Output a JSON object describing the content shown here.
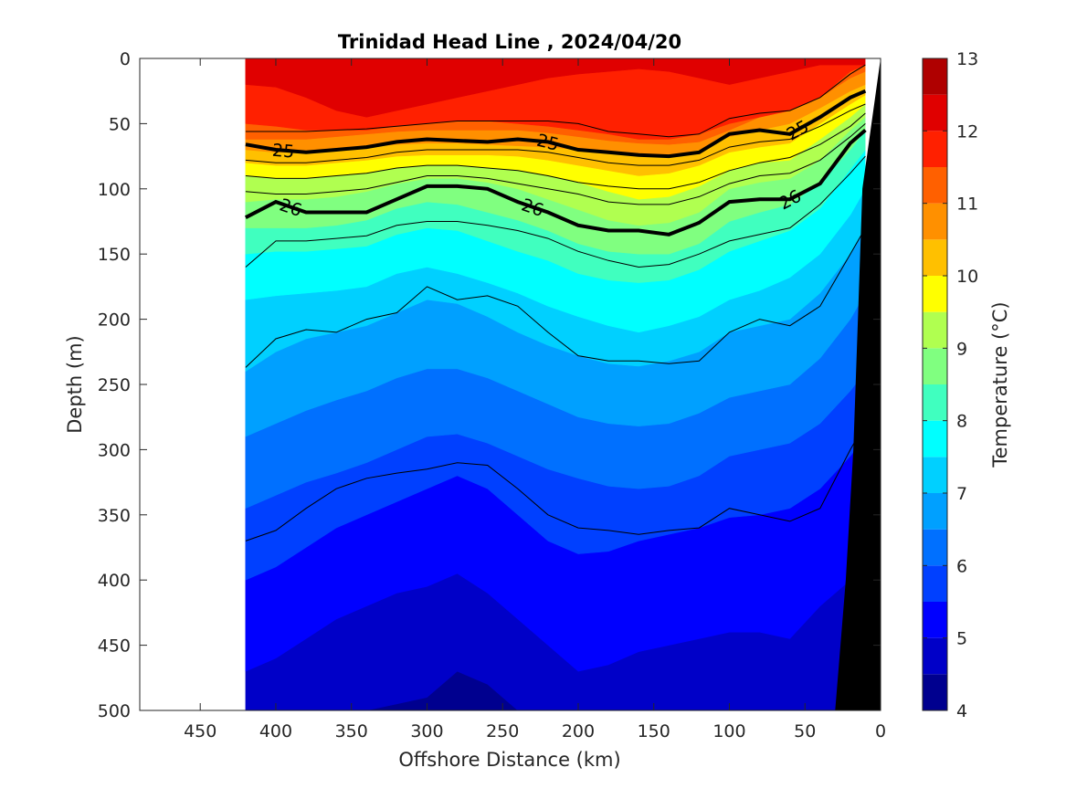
{
  "chart_data": {
    "type": "heatmap",
    "subtype": "filled-contour-section",
    "title": "Trinidad Head Line , 2024/04/20",
    "xlabel": "Offshore Distance (km)",
    "ylabel": "Depth (m)",
    "xlim": [
      490,
      0
    ],
    "ylim": [
      0,
      500
    ],
    "x_reversed": true,
    "y_reversed": true,
    "x_ticks": [
      450,
      400,
      350,
      300,
      250,
      200,
      150,
      100,
      50,
      0
    ],
    "y_ticks": [
      0,
      50,
      100,
      150,
      200,
      250,
      300,
      350,
      400,
      450,
      500
    ],
    "data_x_range": [
      420,
      0
    ],
    "colorbar": {
      "label": "Temperature (°C)",
      "range": [
        4,
        13
      ],
      "ticks": [
        4,
        5,
        6,
        7,
        8,
        9,
        10,
        11,
        12,
        13
      ],
      "levels": [
        4,
        4.5,
        5,
        5.5,
        6,
        6.5,
        7,
        7.5,
        8,
        8.5,
        9,
        9.5,
        10,
        10.5,
        11,
        11.5,
        12,
        12.5,
        13
      ],
      "colors": [
        "#00008f",
        "#0000c8",
        "#0000ff",
        "#0040ff",
        "#0070ff",
        "#00a0ff",
        "#00d0ff",
        "#00ffff",
        "#40ffbf",
        "#80ff80",
        "#b0ff50",
        "#ffff00",
        "#ffc000",
        "#ff9000",
        "#ff6000",
        "#ff2000",
        "#e00000",
        "#af0000"
      ]
    },
    "x": [
      420,
      400,
      380,
      360,
      340,
      320,
      300,
      280,
      260,
      240,
      220,
      200,
      180,
      160,
      140,
      120,
      100,
      80,
      60,
      40,
      20,
      10
    ],
    "isotherms": [
      {
        "temp": 12,
        "depth": [
          20,
          22,
          30,
          40,
          45,
          40,
          35,
          30,
          25,
          20,
          15,
          12,
          10,
          8,
          10,
          15,
          20,
          15,
          10,
          5,
          5,
          5
        ]
      },
      {
        "temp": 11.5,
        "depth": [
          50,
          52,
          55,
          55,
          55,
          52,
          50,
          48,
          48,
          50,
          52,
          55,
          58,
          62,
          62,
          58,
          50,
          45,
          40,
          30,
          10,
          5
        ]
      },
      {
        "temp": 11,
        "depth": [
          62,
          62,
          62,
          60,
          58,
          56,
          55,
          55,
          55,
          55,
          57,
          60,
          63,
          65,
          66,
          64,
          55,
          45,
          40,
          30,
          15,
          10
        ]
      },
      {
        "temp": 10.5,
        "depth": [
          70,
          72,
          72,
          70,
          68,
          66,
          65,
          65,
          66,
          67,
          68,
          70,
          72,
          74,
          75,
          70,
          60,
          55,
          50,
          38,
          25,
          20
        ]
      },
      {
        "temp": 10,
        "depth": [
          80,
          82,
          82,
          80,
          78,
          75,
          74,
          74,
          74,
          75,
          78,
          82,
          86,
          90,
          88,
          82,
          72,
          68,
          65,
          50,
          35,
          28
        ]
      },
      {
        "temp": 9.5,
        "depth": [
          90,
          92,
          92,
          90,
          88,
          84,
          82,
          82,
          84,
          86,
          90,
          95,
          102,
          108,
          106,
          98,
          86,
          80,
          78,
          62,
          45,
          35
        ]
      },
      {
        "temp": 9,
        "depth": [
          110,
          108,
          108,
          106,
          102,
          96,
          92,
          92,
          95,
          100,
          108,
          116,
          124,
          128,
          126,
          118,
          100,
          95,
          92,
          78,
          55,
          45
        ]
      },
      {
        "temp": 8.5,
        "depth": [
          130,
          130,
          130,
          128,
          124,
          115,
          110,
          112,
          118,
          124,
          132,
          142,
          148,
          150,
          150,
          142,
          125,
          118,
          112,
          95,
          70,
          55
        ]
      },
      {
        "temp": 8,
        "depth": [
          150,
          148,
          148,
          146,
          144,
          135,
          130,
          132,
          140,
          148,
          155,
          165,
          170,
          172,
          170,
          162,
          148,
          140,
          132,
          115,
          85,
          70
        ]
      },
      {
        "temp": 7.5,
        "depth": [
          185,
          182,
          180,
          178,
          175,
          165,
          160,
          165,
          172,
          180,
          190,
          198,
          205,
          210,
          205,
          198,
          185,
          178,
          168,
          150,
          120,
          100
        ]
      },
      {
        "temp": 7,
        "depth": [
          240,
          225,
          215,
          210,
          205,
          195,
          185,
          188,
          198,
          210,
          220,
          228,
          234,
          236,
          232,
          225,
          210,
          205,
          200,
          180,
          150,
          130
        ]
      },
      {
        "temp": 6.5,
        "depth": [
          290,
          280,
          270,
          262,
          255,
          245,
          238,
          238,
          245,
          255,
          265,
          275,
          280,
          282,
          280,
          272,
          260,
          255,
          250,
          230,
          200,
          180
        ]
      },
      {
        "temp": 6,
        "depth": [
          345,
          335,
          325,
          318,
          310,
          300,
          290,
          288,
          295,
          305,
          315,
          322,
          328,
          330,
          328,
          320,
          305,
          300,
          295,
          280,
          255,
          240
        ]
      },
      {
        "temp": 5.5,
        "depth": [
          400,
          390,
          375,
          360,
          350,
          340,
          330,
          320,
          330,
          350,
          370,
          380,
          378,
          370,
          365,
          360,
          352,
          350,
          345,
          330,
          305,
          290
        ]
      },
      {
        "temp": 5,
        "depth": [
          470,
          460,
          445,
          430,
          420,
          410,
          405,
          395,
          410,
          430,
          450,
          470,
          465,
          455,
          450,
          445,
          440,
          440,
          445,
          420,
          400,
          380
        ]
      },
      {
        "temp": 4.5,
        "depth": [
          510,
          510,
          510,
          505,
          500,
          495,
          490,
          470,
          480,
          500,
          510,
          510,
          510,
          510,
          510,
          510,
          510,
          510,
          510,
          510,
          510,
          510
        ]
      }
    ],
    "density_contours": [
      {
        "sigma": 25,
        "labels": [
          "25",
          "25",
          "25"
        ],
        "depth": [
          66,
          70,
          72,
          70,
          68,
          64,
          62,
          63,
          64,
          62,
          64,
          70,
          72,
          74,
          75,
          72,
          58,
          55,
          58,
          45,
          30,
          25
        ]
      },
      {
        "sigma": 26,
        "labels": [
          "26",
          "26",
          "26"
        ],
        "depth": [
          122,
          110,
          118,
          118,
          118,
          108,
          98,
          98,
          100,
          110,
          118,
          128,
          132,
          132,
          135,
          126,
          110,
          108,
          108,
          96,
          65,
          55
        ]
      }
    ],
    "thin_contours": [
      {
        "depth": [
          56,
          56,
          56,
          55,
          54,
          52,
          50,
          48,
          48,
          48,
          48,
          50,
          56,
          58,
          60,
          58,
          46,
          42,
          40,
          30,
          12,
          5
        ]
      },
      {
        "depth": [
          78,
          80,
          80,
          78,
          76,
          72,
          70,
          70,
          70,
          70,
          72,
          76,
          80,
          82,
          82,
          78,
          68,
          64,
          62,
          52,
          40,
          35
        ]
      },
      {
        "depth": [
          90,
          92,
          92,
          90,
          88,
          84,
          82,
          82,
          84,
          86,
          90,
          95,
          98,
          100,
          100,
          95,
          86,
          80,
          76,
          66,
          52,
          42
        ]
      },
      {
        "depth": [
          102,
          104,
          104,
          102,
          100,
          95,
          90,
          90,
          92,
          96,
          100,
          104,
          110,
          112,
          112,
          106,
          96,
          90,
          88,
          78,
          60,
          50
        ]
      },
      {
        "depth": [
          160,
          140,
          140,
          138,
          136,
          128,
          125,
          125,
          128,
          132,
          138,
          148,
          155,
          160,
          158,
          150,
          140,
          135,
          130,
          112,
          88,
          75
        ]
      },
      {
        "depth": [
          237,
          215,
          208,
          210,
          200,
          195,
          175,
          185,
          182,
          190,
          210,
          228,
          232,
          232,
          234,
          232,
          210,
          200,
          205,
          190,
          150,
          130
        ]
      },
      {
        "depth": [
          370,
          362,
          345,
          330,
          322,
          318,
          315,
          310,
          312,
          330,
          350,
          360,
          362,
          365,
          362,
          360,
          345,
          350,
          355,
          345,
          300,
          280
        ]
      }
    ],
    "bathymetry_km_at_depth": {
      "depth": [
        0,
        100,
        200,
        300,
        400,
        500
      ],
      "x": [
        0,
        12,
        15,
        18,
        23,
        30
      ]
    }
  }
}
